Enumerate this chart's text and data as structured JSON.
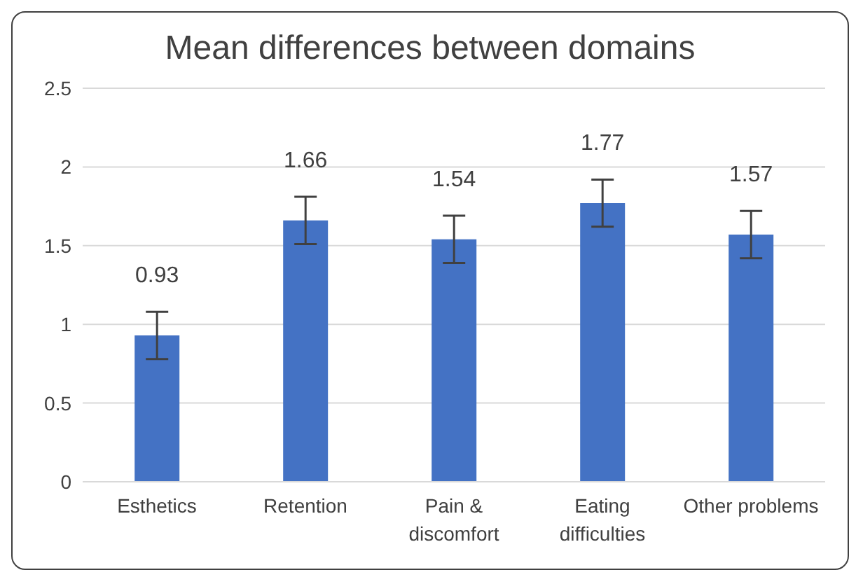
{
  "chart_data": {
    "type": "bar",
    "title": "Mean differences between domains",
    "categories": [
      "Esthetics",
      "Retention",
      "Pain & discomfort",
      "Eating difficulties",
      "Other problems"
    ],
    "values": [
      0.93,
      1.66,
      1.54,
      1.77,
      1.57
    ],
    "errors": [
      0.15,
      0.15,
      0.15,
      0.15,
      0.15
    ],
    "color": "#4472c4",
    "ylim": [
      0,
      2.5
    ],
    "yticks": [
      0,
      0.5,
      1,
      1.5,
      2,
      2.5
    ],
    "grid": "y",
    "data_labels": true
  }
}
